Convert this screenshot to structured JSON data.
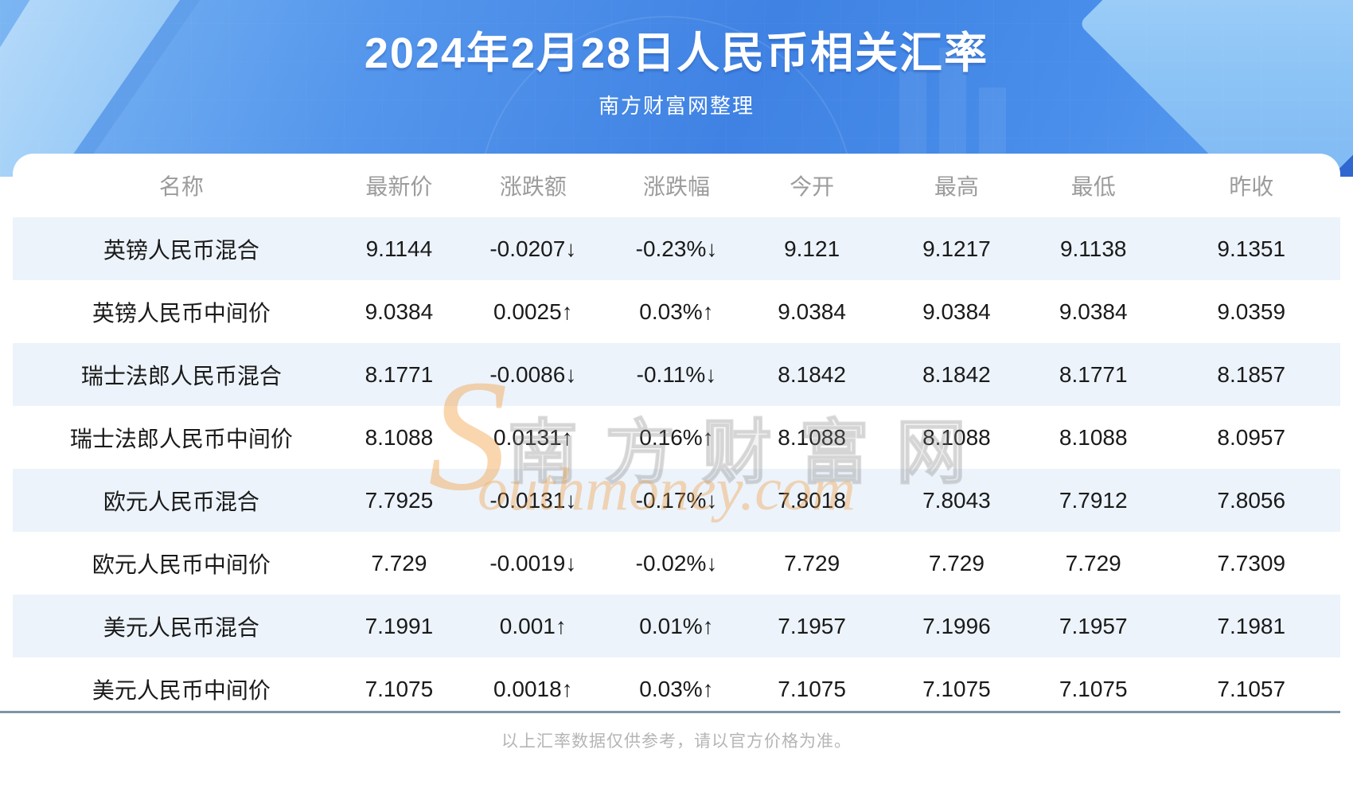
{
  "banner": {
    "title": "2024年2月28日人民币相关汇率",
    "subtitle": "南方财富网整理"
  },
  "table": {
    "headers": [
      "名称",
      "最新价",
      "涨跌额",
      "涨跌幅",
      "今开",
      "最高",
      "最低",
      "昨收"
    ],
    "rows": [
      {
        "name": "英镑人民币混合",
        "latest": "9.1144",
        "change": "-0.0207↓",
        "pct": "-0.23%↓",
        "trend": "down",
        "open": "9.121",
        "high": "9.1217",
        "low": "9.1138",
        "prev": "9.1351"
      },
      {
        "name": "英镑人民币中间价",
        "latest": "9.0384",
        "change": "0.0025↑",
        "pct": "0.03%↑",
        "trend": "up",
        "open": "9.0384",
        "high": "9.0384",
        "low": "9.0384",
        "prev": "9.0359"
      },
      {
        "name": "瑞士法郎人民币混合",
        "latest": "8.1771",
        "change": "-0.0086↓",
        "pct": "-0.11%↓",
        "trend": "down",
        "open": "8.1842",
        "high": "8.1842",
        "low": "8.1771",
        "prev": "8.1857"
      },
      {
        "name": "瑞士法郎人民币中间价",
        "latest": "8.1088",
        "change": "0.0131↑",
        "pct": "0.16%↑",
        "trend": "up",
        "open": "8.1088",
        "high": "8.1088",
        "low": "8.1088",
        "prev": "8.0957"
      },
      {
        "name": "欧元人民币混合",
        "latest": "7.7925",
        "change": "-0.0131↓",
        "pct": "-0.17%↓",
        "trend": "down",
        "open": "7.8018",
        "high": "7.8043",
        "low": "7.7912",
        "prev": "7.8056"
      },
      {
        "name": "欧元人民币中间价",
        "latest": "7.729",
        "change": "-0.0019↓",
        "pct": "-0.02%↓",
        "trend": "down",
        "open": "7.729",
        "high": "7.729",
        "low": "7.729",
        "prev": "7.7309"
      },
      {
        "name": "美元人民币混合",
        "latest": "7.1991",
        "change": "0.001↑",
        "pct": "0.01%↑",
        "trend": "up",
        "open": "7.1957",
        "high": "7.1996",
        "low": "7.1957",
        "prev": "7.1981"
      },
      {
        "name": "美元人民币中间价",
        "latest": "7.1075",
        "change": "0.0018↑",
        "pct": "0.03%↑",
        "trend": "up",
        "open": "7.1075",
        "high": "7.1075",
        "low": "7.1075",
        "prev": "7.1057"
      }
    ]
  },
  "watermark": {
    "s": "S",
    "cn": "南方财富网",
    "en": "outhmoney.com"
  },
  "footer": {
    "note": "以上汇率数据仅供参考，请以官方价格为准。"
  },
  "colors": {
    "up": "#e81f1f",
    "down": "#0d880d",
    "stripe": "#ecf3fb",
    "divider": "#7d94a7",
    "banner": "#4486e6"
  }
}
